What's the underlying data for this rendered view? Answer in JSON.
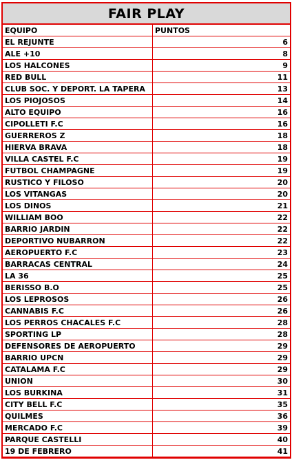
{
  "title": "FAIR PLAY",
  "columns": {
    "team": "EQUIPO",
    "points": "PUNTOS"
  },
  "rows": [
    {
      "team": "EL REJUNTE",
      "points": "6"
    },
    {
      "team": "ALE +10",
      "points": "8"
    },
    {
      "team": "LOS HALCONES",
      "points": "9"
    },
    {
      "team": "RED BULL",
      "points": "11"
    },
    {
      "team": "CLUB SOC. Y DEPORT. LA TAPERA",
      "points": "13"
    },
    {
      "team": "LOS PIOJOSOS",
      "points": "14"
    },
    {
      "team": "ALTO EQUIPO",
      "points": "16"
    },
    {
      "team": "CIPOLLETI F.C",
      "points": "16"
    },
    {
      "team": "GUERREROS Z",
      "points": "18"
    },
    {
      "team": "HIERVA BRAVA",
      "points": "18"
    },
    {
      "team": "VILLA CASTEL F.C",
      "points": "19"
    },
    {
      "team": "FUTBOL CHAMPAGNE",
      "points": "19"
    },
    {
      "team": "RUSTICO Y FILOSO",
      "points": "20"
    },
    {
      "team": "LOS VITANGAS",
      "points": "20"
    },
    {
      "team": "LOS DINOS",
      "points": "21"
    },
    {
      "team": "WILLIAM BOO",
      "points": "22"
    },
    {
      "team": "BARRIO JARDIN",
      "points": "22"
    },
    {
      "team": "DEPORTIVO NUBARRON",
      "points": "22"
    },
    {
      "team": "AEROPUERTO F.C",
      "points": "23"
    },
    {
      "team": "BARRACAS CENTRAL",
      "points": "24"
    },
    {
      "team": "LA 36",
      "points": "25"
    },
    {
      "team": "BERISSO B.O",
      "points": "25"
    },
    {
      "team": "LOS LEPROSOS",
      "points": "26"
    },
    {
      "team": "CANNABIS F.C",
      "points": "26"
    },
    {
      "team": "LOS PERROS CHACALES F.C",
      "points": "28"
    },
    {
      "team": "SPORTING LP",
      "points": "28"
    },
    {
      "team": "DEFENSORES DE AEROPUERTO",
      "points": "29"
    },
    {
      "team": "BARRIO UPCN",
      "points": "29"
    },
    {
      "team": "CATALAMA F.C",
      "points": "29"
    },
    {
      "team": "UNION",
      "points": "30"
    },
    {
      "team": "LOS BURKINA",
      "points": "31"
    },
    {
      "team": "CITY BELL F.C",
      "points": "35"
    },
    {
      "team": "QUILMES",
      "points": "36"
    },
    {
      "team": "MERCADO F.C",
      "points": "39"
    },
    {
      "team": "PARQUE CASTELLI",
      "points": "40"
    },
    {
      "team": "19 DE FEBRERO",
      "points": "41"
    }
  ]
}
